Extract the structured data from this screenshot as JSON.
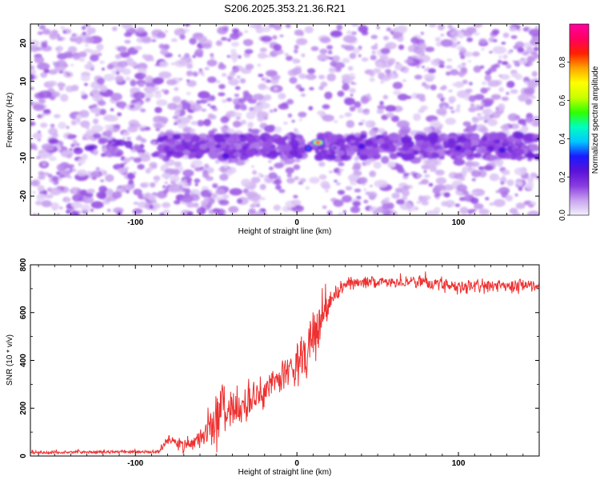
{
  "title": "S206.2025.353.21.36.R21",
  "chart_data": [
    {
      "type": "heatmap",
      "xlabel": "Height of straight line (km)",
      "ylabel": "Frequency (Hz)",
      "xlim": [
        -165,
        150
      ],
      "ylim": [
        -25,
        25
      ],
      "x_ticks": [
        -100,
        0,
        100
      ],
      "y_ticks": [
        -20,
        -10,
        0,
        10,
        20
      ],
      "colorbar": {
        "label": "Normalized spectral amplitude",
        "range": [
          0,
          1
        ],
        "ticks": [
          0.0,
          0.2,
          0.4,
          0.6,
          0.8
        ],
        "tick_labels": [
          "0.0",
          "0.2",
          "0.4",
          "0.6",
          "0.8"
        ],
        "colormap": [
          "#f4f0fc",
          "#c9a3ef",
          "#8a3be0",
          "#5a12d8",
          "#1a1aff",
          "#00c8ff",
          "#00ffc0",
          "#30ff00",
          "#c8ff00",
          "#ffff00",
          "#ffa500",
          "#ff2000",
          "#ff0060",
          "#ff00a0"
        ]
      },
      "ridge": {
        "frequency_hz": -7,
        "peaks": [
          {
            "x": 13,
            "y": -6,
            "amplitude": 0.95
          },
          {
            "x": 7,
            "y": -7.5,
            "amplitude": 0.35
          },
          {
            "x": 40,
            "y": -7,
            "amplitude": 0.3
          },
          {
            "x": -44,
            "y": -9.5,
            "amplitude": 0.28
          },
          {
            "x": 100,
            "y": -7.5,
            "amplitude": 0.25
          },
          {
            "x": 127,
            "y": -8,
            "amplitude": 0.3
          },
          {
            "x": 120,
            "y": -7.5,
            "amplitude": 0.22
          },
          {
            "x": 55,
            "y": -7,
            "amplitude": 0.18
          }
        ]
      },
      "background_max_amplitude": 0.15
    },
    {
      "type": "line",
      "xlabel": "Height of straight line (km)",
      "ylabel": "SNR (10 * v/v)",
      "xlim": [
        -165,
        150
      ],
      "ylim": [
        0,
        800
      ],
      "x_ticks": [
        -100,
        0,
        100
      ],
      "y_ticks": [
        0,
        200,
        400,
        600,
        800
      ],
      "color": "#ee3030",
      "profile": [
        {
          "x": -165,
          "y": 15
        },
        {
          "x": -85,
          "y": 18
        },
        {
          "x": -80,
          "y": 70
        },
        {
          "x": -70,
          "y": 40
        },
        {
          "x": -60,
          "y": 70
        },
        {
          "x": -50,
          "y": 150
        },
        {
          "x": -45,
          "y": 200
        },
        {
          "x": -35,
          "y": 200
        },
        {
          "x": -25,
          "y": 250
        },
        {
          "x": -15,
          "y": 300
        },
        {
          "x": -5,
          "y": 360
        },
        {
          "x": 0,
          "y": 380
        },
        {
          "x": 5,
          "y": 420
        },
        {
          "x": 10,
          "y": 480
        },
        {
          "x": 15,
          "y": 550
        },
        {
          "x": 20,
          "y": 640
        },
        {
          "x": 25,
          "y": 690
        },
        {
          "x": 30,
          "y": 720
        },
        {
          "x": 50,
          "y": 730
        },
        {
          "x": 90,
          "y": 720
        },
        {
          "x": 100,
          "y": 710
        },
        {
          "x": 150,
          "y": 710
        }
      ],
      "noise_amplitude": [
        {
          "x": -165,
          "y": 8
        },
        {
          "x": -85,
          "y": 8
        },
        {
          "x": -80,
          "y": 25
        },
        {
          "x": -55,
          "y": 60
        },
        {
          "x": -50,
          "y": 150
        },
        {
          "x": -45,
          "y": 170
        },
        {
          "x": -35,
          "y": 110
        },
        {
          "x": -10,
          "y": 80
        },
        {
          "x": 0,
          "y": 110
        },
        {
          "x": 10,
          "y": 130
        },
        {
          "x": 20,
          "y": 60
        },
        {
          "x": 30,
          "y": 30
        },
        {
          "x": 100,
          "y": 35
        },
        {
          "x": 110,
          "y": 40
        },
        {
          "x": 150,
          "y": 30
        }
      ]
    }
  ]
}
